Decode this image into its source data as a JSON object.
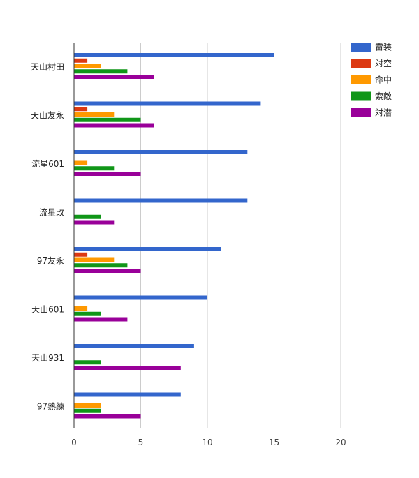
{
  "chart_data": {
    "type": "bar",
    "orientation": "horizontal",
    "categories": [
      "天山村田",
      "天山友永",
      "流星601",
      "流星改",
      "97友永",
      "天山601",
      "天山931",
      "97熟練"
    ],
    "series": [
      {
        "name": "雷装",
        "color": "#3366cc",
        "values": [
          15,
          14,
          13,
          13,
          11,
          10,
          9,
          8
        ]
      },
      {
        "name": "対空",
        "color": "#dc3912",
        "values": [
          1,
          1,
          0,
          0,
          1,
          0,
          0,
          0
        ]
      },
      {
        "name": "命中",
        "color": "#ff9900",
        "values": [
          2,
          3,
          1,
          0,
          3,
          1,
          0,
          2
        ]
      },
      {
        "name": "索敵",
        "color": "#109618",
        "values": [
          4,
          5,
          3,
          2,
          4,
          2,
          2,
          2
        ]
      },
      {
        "name": "対潜",
        "color": "#990099",
        "values": [
          6,
          6,
          5,
          3,
          5,
          4,
          8,
          5
        ]
      }
    ],
    "xlim": [
      0,
      20
    ],
    "xticks": [
      "0",
      "5",
      "10",
      "15",
      "20"
    ],
    "grid": true,
    "legend_position": "top-right",
    "title": "",
    "xlabel": "",
    "ylabel": ""
  }
}
